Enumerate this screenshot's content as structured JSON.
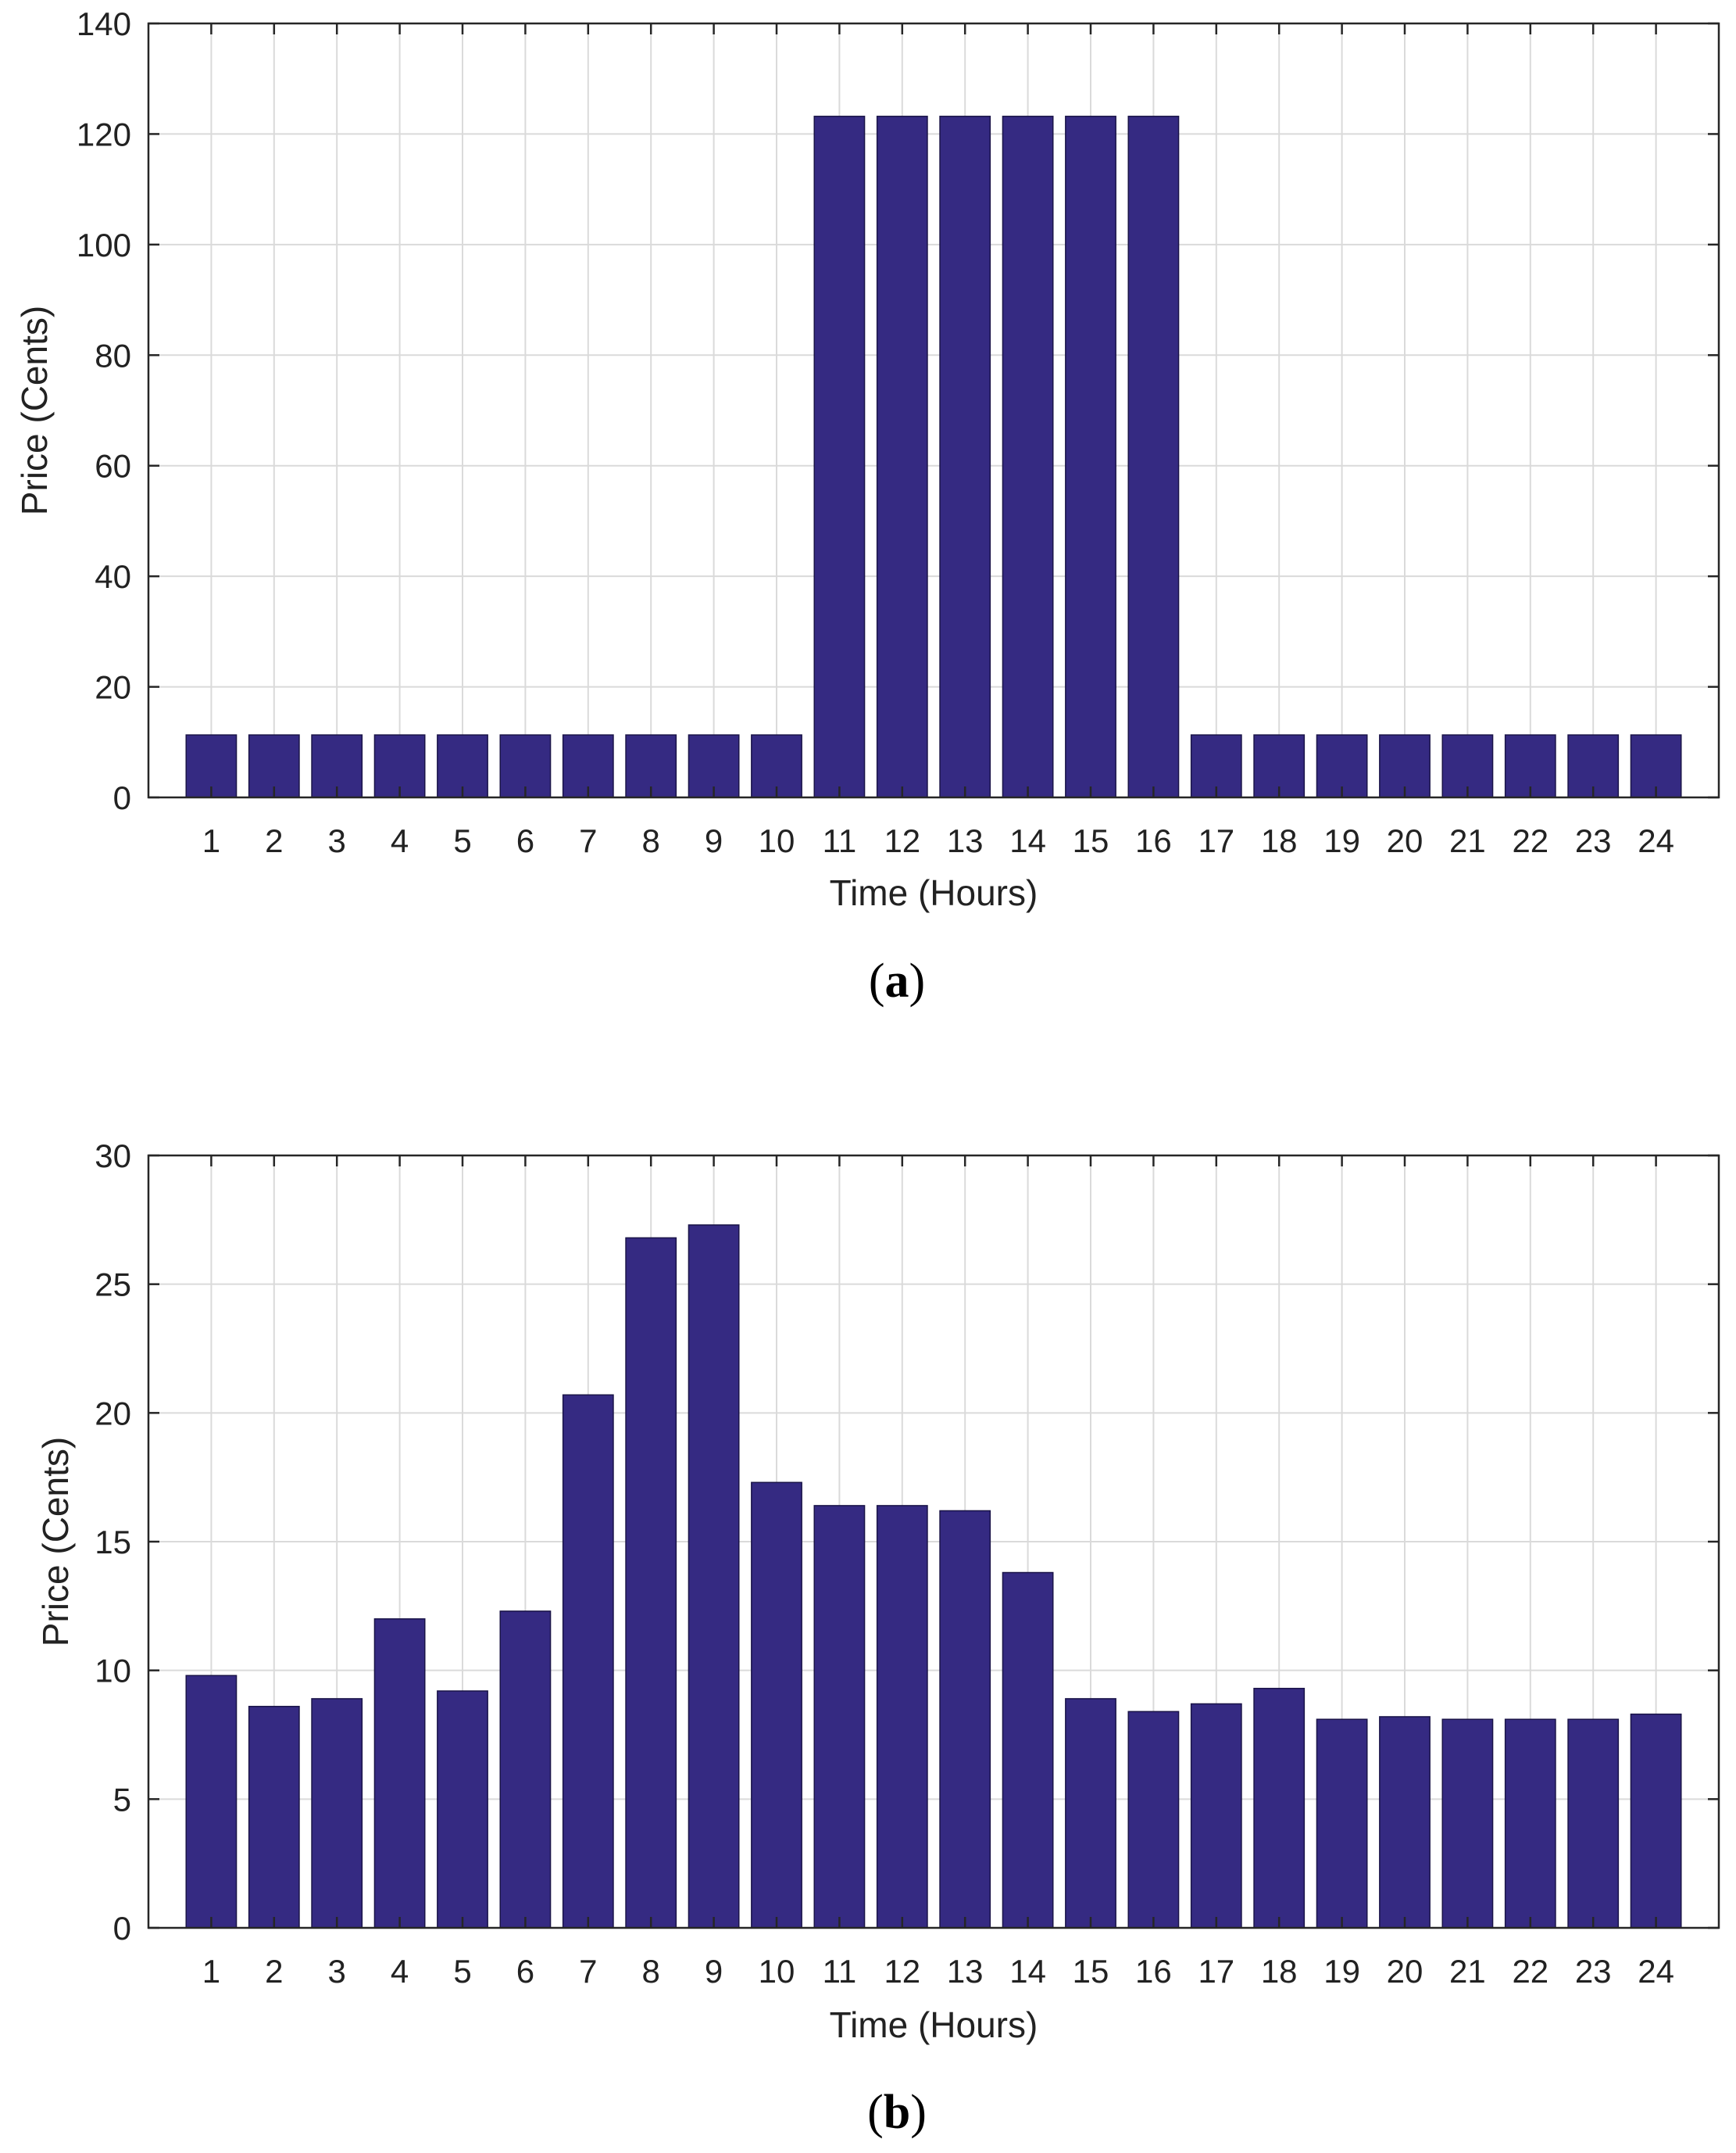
{
  "colors": {
    "bar": "#352A82",
    "grid": "#DADADA",
    "axis": "#262626",
    "background": "#FFFFFF"
  },
  "chart_data": [
    {
      "type": "bar",
      "title": "",
      "caption": "a",
      "xlabel": "Time (Hours)",
      "ylabel": "Price (Cents)",
      "categories": [
        "1",
        "2",
        "3",
        "4",
        "5",
        "6",
        "7",
        "8",
        "9",
        "10",
        "11",
        "12",
        "13",
        "14",
        "15",
        "16",
        "17",
        "18",
        "19",
        "20",
        "21",
        "22",
        "23",
        "24"
      ],
      "values": [
        11.3,
        11.3,
        11.3,
        11.3,
        11.3,
        11.3,
        11.3,
        11.3,
        11.3,
        11.3,
        123.2,
        123.2,
        123.2,
        123.2,
        123.2,
        123.2,
        11.3,
        11.3,
        11.3,
        11.3,
        11.3,
        11.3,
        11.3,
        11.3
      ],
      "ylim": [
        0,
        140
      ],
      "yticks": [
        0,
        20,
        40,
        60,
        80,
        100,
        120,
        140
      ],
      "ytick_labels": [
        "0",
        "20",
        "40",
        "60",
        "80",
        "100",
        "120",
        "140"
      ],
      "grid": true
    },
    {
      "type": "bar",
      "title": "",
      "caption": "b",
      "xlabel": "Time (Hours)",
      "ylabel": "Price (Cents)",
      "categories": [
        "1",
        "2",
        "3",
        "4",
        "5",
        "6",
        "7",
        "8",
        "9",
        "10",
        "11",
        "12",
        "13",
        "14",
        "15",
        "16",
        "17",
        "18",
        "19",
        "20",
        "21",
        "22",
        "23",
        "24"
      ],
      "values": [
        9.8,
        8.6,
        8.9,
        12.0,
        9.2,
        12.3,
        20.7,
        26.8,
        27.3,
        17.3,
        16.4,
        16.4,
        16.2,
        13.8,
        8.9,
        8.4,
        8.7,
        9.3,
        8.1,
        8.2,
        8.1,
        8.1,
        8.1,
        8.3
      ],
      "ylim": [
        0,
        30
      ],
      "yticks": [
        0,
        5,
        10,
        15,
        20,
        25,
        30
      ],
      "ytick_labels": [
        "0",
        "5",
        "10",
        "15",
        "20",
        "25",
        "30"
      ],
      "grid": true
    }
  ]
}
